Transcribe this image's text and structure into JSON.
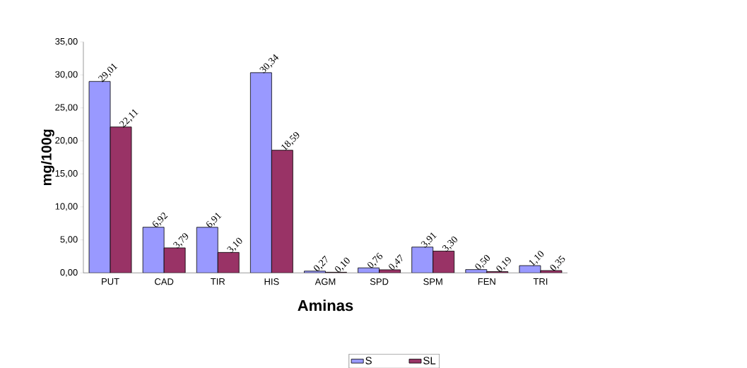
{
  "chart_data": {
    "type": "bar",
    "xlabel": "Aminas",
    "ylabel": "mg/100g",
    "categories": [
      "PUT",
      "CAD",
      "TIR",
      "HIS",
      "AGM",
      "SPD",
      "SPM",
      "FEN",
      "TRI"
    ],
    "series": [
      {
        "name": "S",
        "color": "#9999ff",
        "values": [
          29.01,
          6.92,
          6.91,
          30.34,
          0.27,
          0.76,
          3.91,
          0.5,
          1.1
        ],
        "value_labels": [
          "29,01",
          "6,92",
          "6,91",
          "30,34",
          "0,27",
          "0,76",
          "3,91",
          "0,50",
          "1,10"
        ]
      },
      {
        "name": "SL",
        "color": "#993366",
        "values": [
          22.11,
          3.79,
          3.1,
          18.59,
          0.1,
          0.47,
          3.3,
          0.19,
          0.35
        ],
        "value_labels": [
          "22,11",
          "3,79",
          "3,10",
          "18,59",
          "0,10",
          "0,47",
          "3,30",
          "0,19",
          "0,35"
        ]
      }
    ],
    "ylim": [
      0,
      35
    ],
    "yticks": [
      {
        "value": 0,
        "label": "0,00"
      },
      {
        "value": 5,
        "label": "5,00"
      },
      {
        "value": 10,
        "label": "10,00"
      },
      {
        "value": 15,
        "label": "15,00"
      },
      {
        "value": 20,
        "label": "20,00"
      },
      {
        "value": 25,
        "label": "25,00"
      },
      {
        "value": 30,
        "label": "30,00"
      },
      {
        "value": 35,
        "label": "35,00"
      }
    ],
    "grid": false,
    "legend": "bottom"
  }
}
